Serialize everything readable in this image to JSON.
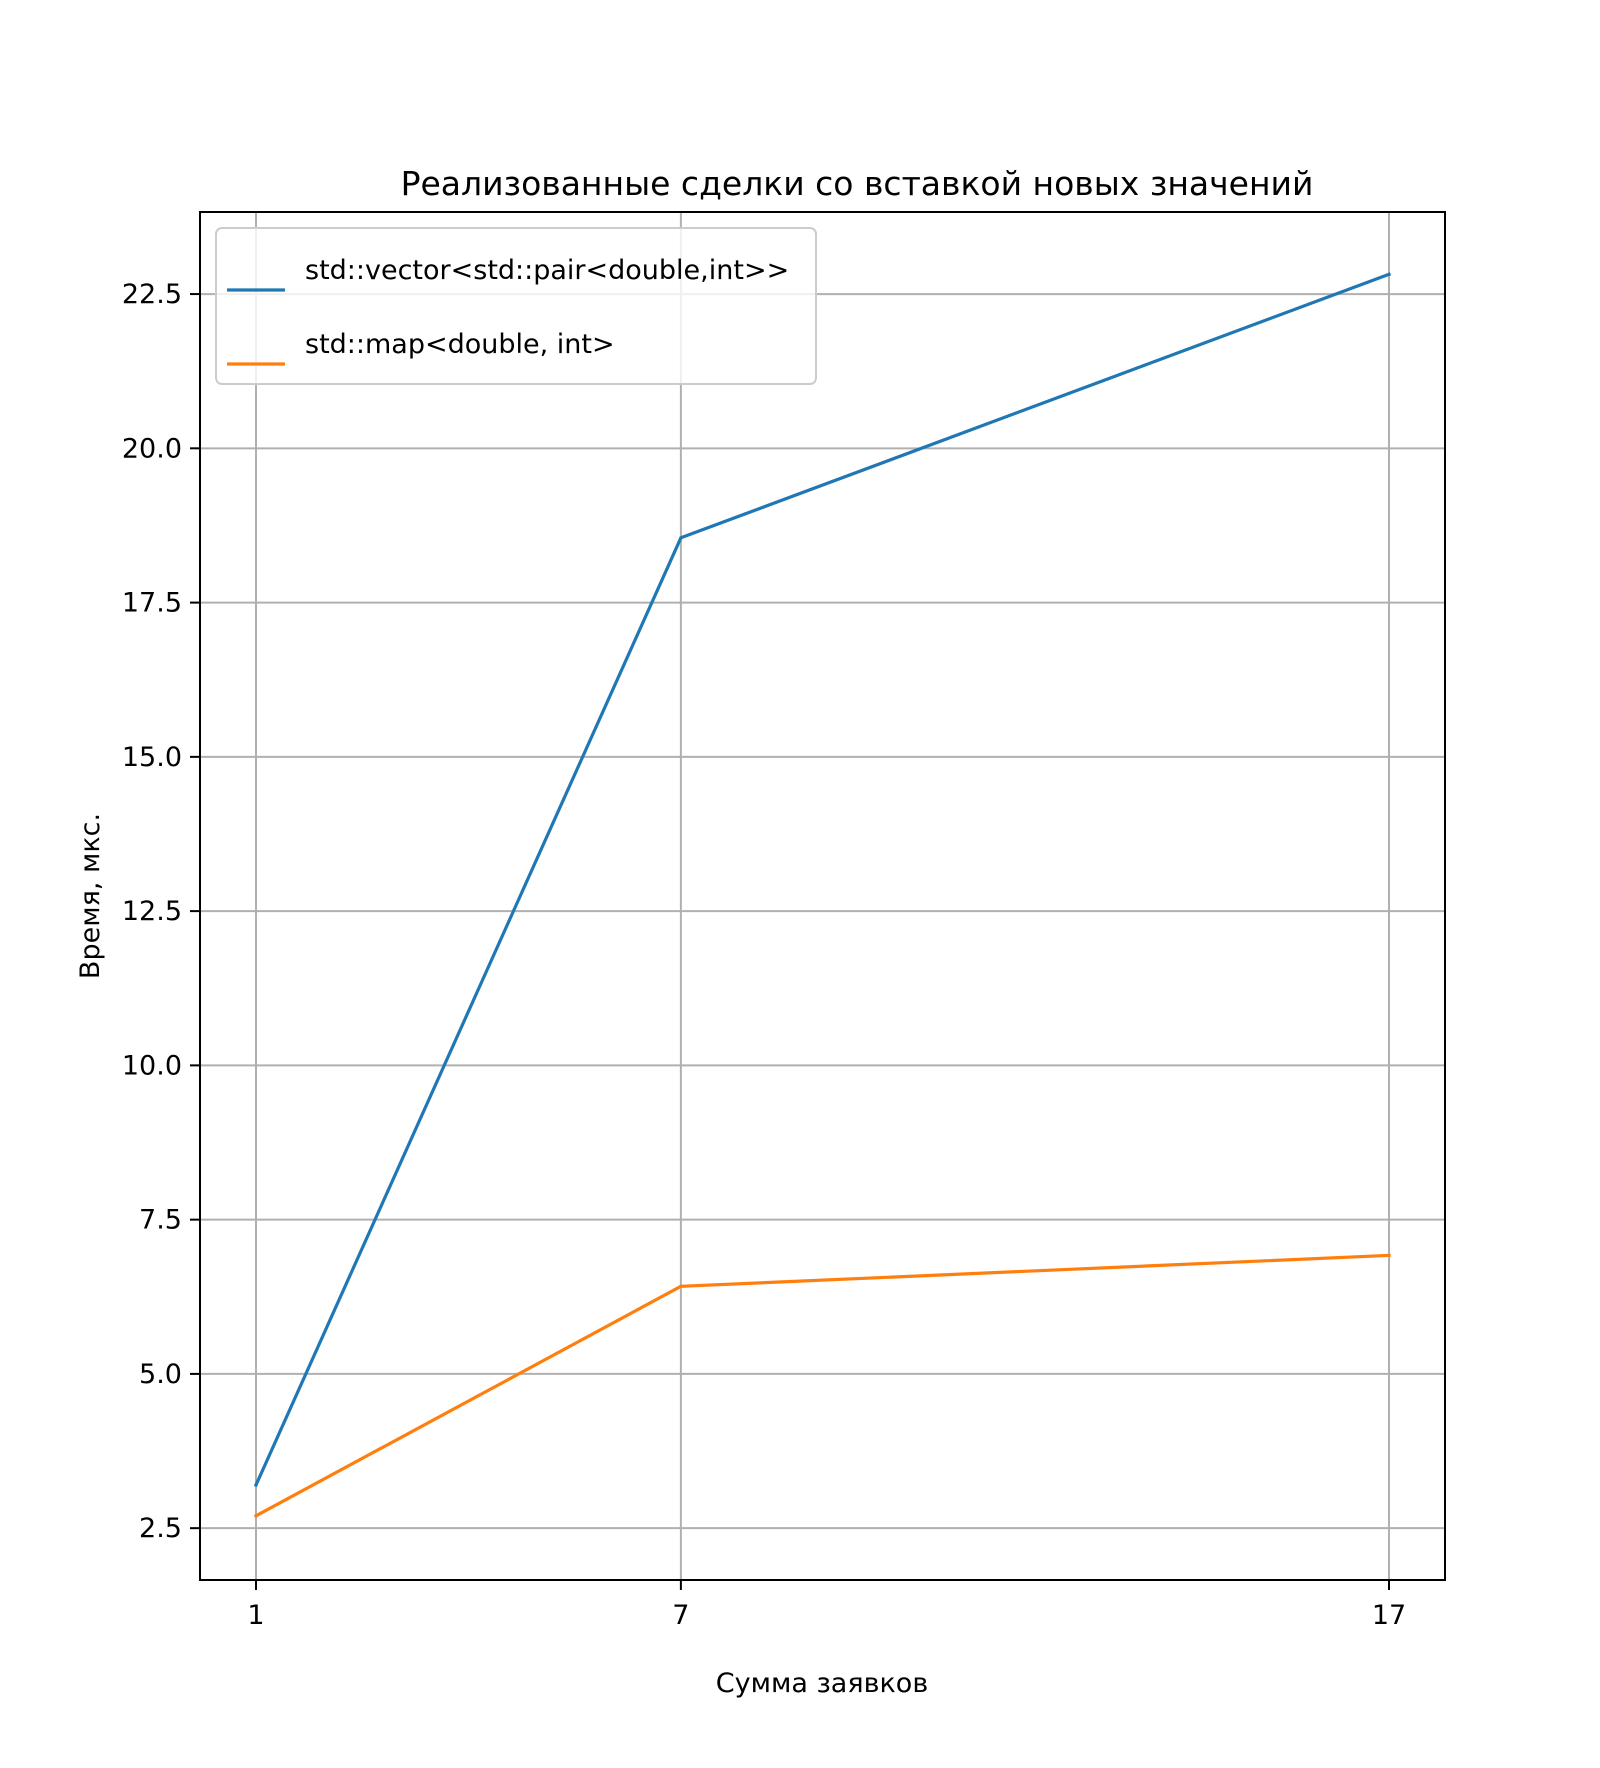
{
  "chart_data": {
    "type": "line",
    "title": "Реализованные сделки со вставкой новых значений",
    "xlabel": "Сумма заявков",
    "ylabel": "Время, мкс.",
    "categories": [
      "1",
      "7",
      "17"
    ],
    "series": [
      {
        "name": "std::vector<std::pair<double,int>>",
        "color": "#1f77b4",
        "values": [
          3.2,
          18.55,
          22.82
        ]
      },
      {
        "name": "std::map<double, int>",
        "color": "#ff7f0e",
        "values": [
          2.7,
          6.42,
          6.92
        ]
      }
    ],
    "yticks": [
      2.5,
      5.0,
      7.5,
      10.0,
      12.5,
      15.0,
      17.5,
      20.0,
      22.5
    ],
    "ytick_labels": [
      "2.5",
      "5.0",
      "7.5",
      "10.0",
      "12.5",
      "15.0",
      "17.5",
      "20.0",
      "22.5"
    ],
    "ylim": [
      1.66,
      23.83
    ],
    "grid": true,
    "legend_position": "upper-left"
  }
}
